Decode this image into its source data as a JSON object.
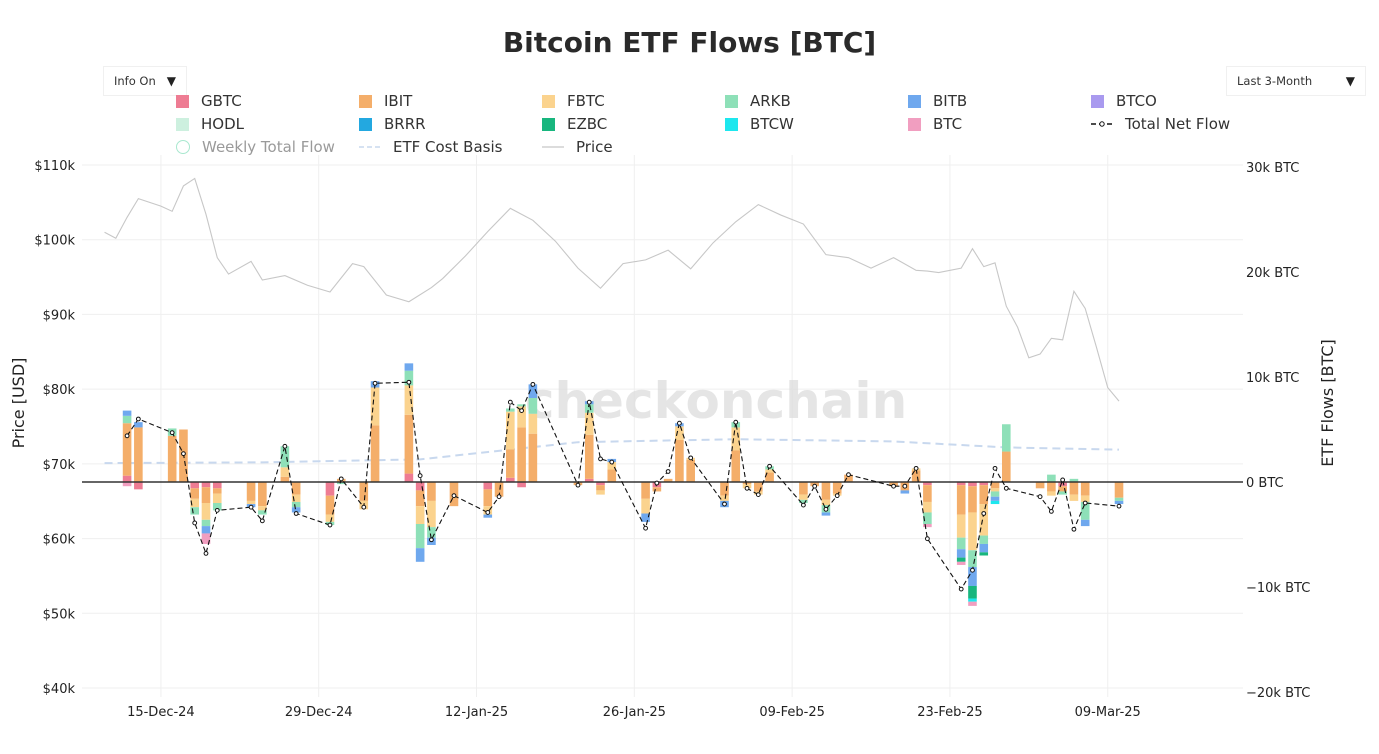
{
  "title": "Bitcoin ETF Flows [BTC]",
  "controls": {
    "info_toggle": "Info On",
    "range_select": "Last 3-Month"
  },
  "watermark": "checkonchain",
  "legend": [
    {
      "name": "GBTC",
      "color": "#ee7c93",
      "kind": "square"
    },
    {
      "name": "IBIT",
      "color": "#f4ae6a",
      "kind": "square"
    },
    {
      "name": "FBTC",
      "color": "#fbd38e",
      "kind": "square"
    },
    {
      "name": "ARKB",
      "color": "#8ee0b8",
      "kind": "square"
    },
    {
      "name": "BITB",
      "color": "#6fa8ee",
      "kind": "square"
    },
    {
      "name": "BTCO",
      "color": "#a99aef",
      "kind": "square"
    },
    {
      "name": "HODL",
      "color": "#cdf0df",
      "kind": "square"
    },
    {
      "name": "BRRR",
      "color": "#23a8e0",
      "kind": "square"
    },
    {
      "name": "EZBC",
      "color": "#18b67e",
      "kind": "square"
    },
    {
      "name": "BTCW",
      "color": "#1de7ee",
      "kind": "square"
    },
    {
      "name": "BTC",
      "color": "#f19ec0",
      "kind": "square"
    },
    {
      "name": "Total Net Flow",
      "color": "#111111",
      "kind": "dashed-marker"
    },
    {
      "name": "Weekly Total Flow",
      "color": "#a9e8cf",
      "kind": "circle"
    },
    {
      "name": "ETF Cost Basis",
      "color": "#c8d8ee",
      "kind": "dashed"
    },
    {
      "name": "Price",
      "color": "#c7c7c7",
      "kind": "line"
    }
  ],
  "chart_data": {
    "type": "bar",
    "title": "Bitcoin ETF Flows [BTC]",
    "ylabel_left": "Price [USD]",
    "ylabel_right": "ETF Flows [BTC]",
    "xlabel": "",
    "ylim_left": [
      40000,
      110000
    ],
    "ylim_right": [
      -20000,
      30000
    ],
    "left_ticks": [
      "$40k",
      "$50k",
      "$60k",
      "$70k",
      "$80k",
      "$90k",
      "$100k",
      "$110k"
    ],
    "right_ticks": [
      "−20k BTC",
      "−10k BTC",
      "0 BTC",
      "10k BTC",
      "20k BTC",
      "30k BTC"
    ],
    "x_ticks": [
      "15-Dec-24",
      "29-Dec-24",
      "12-Jan-25",
      "26-Jan-25",
      "09-Feb-25",
      "23-Feb-25",
      "09-Mar-25"
    ],
    "dates": [
      "2024-12-12",
      "2024-12-13",
      "2024-12-16",
      "2024-12-17",
      "2024-12-18",
      "2024-12-19",
      "2024-12-20",
      "2024-12-23",
      "2024-12-24",
      "2024-12-26",
      "2024-12-27",
      "2024-12-30",
      "2024-12-31",
      "2025-01-02",
      "2025-01-03",
      "2025-01-06",
      "2025-01-07",
      "2025-01-08",
      "2025-01-10",
      "2025-01-13",
      "2025-01-14",
      "2025-01-15",
      "2025-01-16",
      "2025-01-17",
      "2025-01-21",
      "2025-01-22",
      "2025-01-23",
      "2025-01-24",
      "2025-01-27",
      "2025-01-28",
      "2025-01-29",
      "2025-01-30",
      "2025-01-31",
      "2025-02-03",
      "2025-02-04",
      "2025-02-05",
      "2025-02-06",
      "2025-02-07",
      "2025-02-10",
      "2025-02-11",
      "2025-02-12",
      "2025-02-13",
      "2025-02-14",
      "2025-02-18",
      "2025-02-19",
      "2025-02-20",
      "2025-02-21",
      "2025-02-24",
      "2025-02-25",
      "2025-02-26",
      "2025-02-27",
      "2025-02-28",
      "2025-03-03",
      "2025-03-04",
      "2025-03-05",
      "2025-03-06",
      "2025-03-07",
      "2025-03-10"
    ],
    "funds": [
      "GBTC",
      "IBIT",
      "FBTC",
      "ARKB",
      "BITB",
      "BTCO",
      "HODL",
      "BRRR",
      "EZBC",
      "BTCW",
      "BTC"
    ],
    "net_flow": [
      4400,
      6000,
      4700,
      2700,
      -3900,
      -6800,
      -2700,
      -2400,
      -3700,
      3400,
      -3000,
      -4100,
      300,
      -2400,
      9400,
      9500,
      600,
      -5500,
      -1300,
      -2900,
      -1400,
      7600,
      6800,
      9300,
      -300,
      7600,
      2200,
      1900,
      -4400,
      -100,
      1000,
      5600,
      2300,
      -2100,
      5700,
      -600,
      -1200,
      1500,
      -2200,
      -400,
      -2600,
      -1300,
      700,
      -400,
      -400,
      1300,
      -5400,
      -10200,
      -8400,
      -3000,
      1300,
      -600,
      -1400,
      -2800,
      200,
      -4500,
      -2000,
      -2300
    ],
    "flows": [
      [
        600,
        5000,
        0,
        700,
        500,
        0,
        0,
        0,
        0,
        0,
        -400
      ],
      [
        -700,
        5200,
        0,
        0,
        500,
        0,
        0,
        0,
        0,
        0,
        0
      ],
      [
        0,
        4400,
        0,
        700,
        0,
        0,
        0,
        0,
        0,
        0,
        0
      ],
      [
        0,
        5000,
        0,
        0,
        0,
        0,
        0,
        0,
        0,
        0,
        0
      ],
      [
        -600,
        -1000,
        -800,
        -700,
        0,
        0,
        0,
        0,
        0,
        0,
        0
      ],
      [
        -500,
        -1500,
        -1600,
        -600,
        -700,
        0,
        0,
        0,
        0,
        0,
        -1000
      ],
      [
        -600,
        -500,
        -900,
        -700,
        0,
        0,
        0,
        0,
        0,
        0,
        0
      ],
      [
        0,
        -1800,
        -300,
        0,
        -300,
        0,
        0,
        0,
        0,
        0,
        0
      ],
      [
        0,
        -2300,
        -400,
        -400,
        0,
        0,
        0,
        0,
        0,
        0,
        0
      ],
      [
        0,
        500,
        900,
        2000,
        0,
        0,
        0,
        0,
        0,
        0,
        0
      ],
      [
        0,
        -1200,
        -700,
        -500,
        -500,
        0,
        0,
        0,
        0,
        0,
        0
      ],
      [
        -1300,
        -1800,
        -700,
        -300,
        0,
        0,
        0,
        0,
        0,
        0,
        0
      ],
      [
        0,
        300,
        0,
        -200,
        0,
        0,
        0,
        0,
        0,
        0,
        0
      ],
      [
        0,
        -1800,
        -800,
        0,
        0,
        0,
        0,
        0,
        0,
        0,
        0
      ],
      [
        0,
        5400,
        3600,
        0,
        600,
        0,
        0,
        0,
        0,
        0,
        0
      ],
      [
        800,
        5600,
        2800,
        1400,
        700,
        0,
        0,
        0,
        0,
        0,
        0
      ],
      [
        -800,
        -1500,
        -1700,
        -2300,
        -1300,
        0,
        0,
        0,
        0,
        0,
        0
      ],
      [
        0,
        -1800,
        -2500,
        -1000,
        -700,
        0,
        0,
        0,
        0,
        0,
        0
      ],
      [
        0,
        -2300,
        0,
        0,
        0,
        0,
        0,
        0,
        0,
        0,
        0
      ],
      [
        -700,
        -1600,
        -800,
        0,
        -300,
        0,
        0,
        0,
        0,
        0,
        0
      ],
      [
        0,
        -1400,
        0,
        0,
        0,
        0,
        0,
        0,
        0,
        0,
        0
      ],
      [
        400,
        2700,
        3600,
        300,
        0,
        0,
        0,
        0,
        0,
        0,
        0
      ],
      [
        -500,
        5200,
        2000,
        200,
        0,
        0,
        0,
        0,
        0,
        0,
        0
      ],
      [
        0,
        4600,
        1900,
        1500,
        1300,
        0,
        0,
        0,
        0,
        0,
        0
      ],
      [
        0,
        -300,
        0,
        0,
        0,
        0,
        0,
        0,
        0,
        0,
        0
      ],
      [
        300,
        4200,
        2100,
        800,
        300,
        0,
        0,
        0,
        0,
        0,
        0
      ],
      [
        -300,
        -500,
        -400,
        0,
        0,
        0,
        0,
        0,
        0,
        0,
        0
      ],
      [
        0,
        1200,
        700,
        0,
        300,
        0,
        0,
        0,
        0,
        0,
        0
      ],
      [
        0,
        -1600,
        -1400,
        0,
        -800,
        0,
        0,
        0,
        0,
        0,
        0
      ],
      [
        -500,
        -400,
        0,
        0,
        0,
        0,
        0,
        0,
        0,
        0,
        0
      ],
      [
        0,
        300,
        0,
        0,
        0,
        0,
        0,
        0,
        0,
        0,
        0
      ],
      [
        0,
        4000,
        1300,
        0,
        300,
        0,
        0,
        0,
        0,
        0,
        0
      ],
      [
        0,
        2100,
        200,
        0,
        0,
        0,
        0,
        0,
        0,
        0,
        0
      ],
      [
        0,
        -1300,
        -500,
        0,
        -600,
        0,
        0,
        0,
        0,
        0,
        0
      ],
      [
        0,
        3000,
        2200,
        500,
        0,
        0,
        0,
        0,
        0,
        0,
        0
      ],
      [
        0,
        -200,
        -400,
        0,
        0,
        0,
        0,
        0,
        0,
        0,
        0
      ],
      [
        0,
        -900,
        -300,
        0,
        0,
        0,
        0,
        0,
        0,
        0,
        0
      ],
      [
        0,
        900,
        300,
        300,
        0,
        0,
        0,
        0,
        0,
        0,
        0
      ],
      [
        0,
        -1200,
        -500,
        -300,
        0,
        0,
        0,
        0,
        0,
        0,
        0
      ],
      [
        0,
        -400,
        0,
        0,
        0,
        0,
        0,
        0,
        0,
        0,
        0
      ],
      [
        0,
        -1700,
        -500,
        -700,
        -300,
        0,
        0,
        0,
        0,
        0,
        0
      ],
      [
        0,
        -1100,
        -200,
        0,
        0,
        0,
        0,
        0,
        0,
        0,
        0
      ],
      [
        0,
        700,
        0,
        0,
        0,
        0,
        0,
        0,
        0,
        0,
        0
      ],
      [
        0,
        -400,
        0,
        0,
        0,
        0,
        0,
        0,
        0,
        0,
        0
      ],
      [
        0,
        -800,
        0,
        0,
        -300,
        0,
        0,
        0,
        0,
        0,
        0
      ],
      [
        0,
        1100,
        200,
        0,
        0,
        0,
        0,
        0,
        0,
        0,
        0
      ],
      [
        -300,
        -1600,
        -1000,
        -1100,
        0,
        0,
        0,
        0,
        0,
        0,
        -300
      ],
      [
        -300,
        -2800,
        -2200,
        -1100,
        -800,
        0,
        0,
        0,
        -400,
        0,
        -300
      ],
      [
        -400,
        -2500,
        -3600,
        -1600,
        -1800,
        0,
        0,
        0,
        -1200,
        -300,
        -400
      ],
      [
        -300,
        -1800,
        -3000,
        -800,
        -800,
        0,
        0,
        0,
        -300,
        0,
        0
      ],
      [
        0,
        -600,
        -300,
        -500,
        -400,
        0,
        0,
        0,
        0,
        -300,
        0
      ],
      [
        0,
        2900,
        0,
        2600,
        0,
        0,
        0,
        0,
        0,
        0,
        0
      ],
      [
        0,
        -600,
        0,
        0,
        0,
        0,
        0,
        0,
        0,
        0,
        0
      ],
      [
        0,
        -900,
        -400,
        700,
        0,
        0,
        0,
        0,
        0,
        0,
        0
      ],
      [
        -400,
        -500,
        0,
        -300,
        0,
        0,
        0,
        0,
        0,
        0,
        0
      ],
      [
        0,
        -1200,
        -600,
        300,
        0,
        0,
        0,
        0,
        0,
        0,
        0
      ],
      [
        0,
        -1300,
        -600,
        -1700,
        -600,
        0,
        0,
        0,
        0,
        0,
        0
      ],
      [
        0,
        -1500,
        0,
        -300,
        -300,
        0,
        0,
        0,
        0,
        0,
        0
      ]
    ],
    "price": [
      101000,
      100200,
      103000,
      105500,
      104500,
      103800,
      107200,
      108200,
      103400,
      97600,
      95400,
      97100,
      94600,
      95200,
      93900,
      93000,
      96800,
      96400,
      92600,
      91700,
      93600,
      94800,
      97800,
      101100,
      104200,
      102600,
      99800,
      96200,
      93500,
      96800,
      97300,
      98600,
      96100,
      99600,
      102400,
      104700,
      103300,
      102100,
      98000,
      97600,
      96200,
      97600,
      95900,
      95800,
      95600,
      96200,
      98800,
      96400,
      96900,
      91100,
      88300,
      84200,
      84700,
      86800,
      86600,
      93100,
      90800,
      85600,
      80200,
      78400
    ],
    "price_dates": [
      "2024-12-10",
      "2024-12-11",
      "2024-12-12",
      "2024-12-13",
      "2024-12-15",
      "2024-12-16",
      "2024-12-17",
      "2024-12-18",
      "2024-12-19",
      "2024-12-20",
      "2024-12-21",
      "2024-12-23",
      "2024-12-24",
      "2024-12-26",
      "2024-12-28",
      "2024-12-30",
      "2025-01-01",
      "2025-01-02",
      "2025-01-04",
      "2025-01-06",
      "2025-01-08",
      "2025-01-09",
      "2025-01-11",
      "2025-01-13",
      "2025-01-15",
      "2025-01-17",
      "2025-01-19",
      "2025-01-21",
      "2025-01-23",
      "2025-01-25",
      "2025-01-27",
      "2025-01-29",
      "2025-01-31",
      "2025-02-02",
      "2025-02-04",
      "2025-02-06",
      "2025-02-08",
      "2025-02-10",
      "2025-02-12",
      "2025-02-14",
      "2025-02-16",
      "2025-02-18",
      "2025-02-20",
      "2025-02-21",
      "2025-02-22",
      "2025-02-24",
      "2025-02-25",
      "2025-02-26",
      "2025-02-27",
      "2025-02-28",
      "2025-03-01",
      "2025-03-02",
      "2025-03-03",
      "2025-03-04",
      "2025-03-05",
      "2025-03-06",
      "2025-03-07",
      "2025-03-08",
      "2025-03-09",
      "2025-03-10"
    ],
    "cost_basis_dates": [
      "2024-12-10",
      "2024-12-24",
      "2025-01-07",
      "2025-01-21",
      "2025-02-04",
      "2025-02-18",
      "2025-02-28",
      "2025-03-10"
    ],
    "cost_basis": [
      70100,
      70200,
      70600,
      72900,
      73300,
      73000,
      72200,
      71900
    ]
  }
}
